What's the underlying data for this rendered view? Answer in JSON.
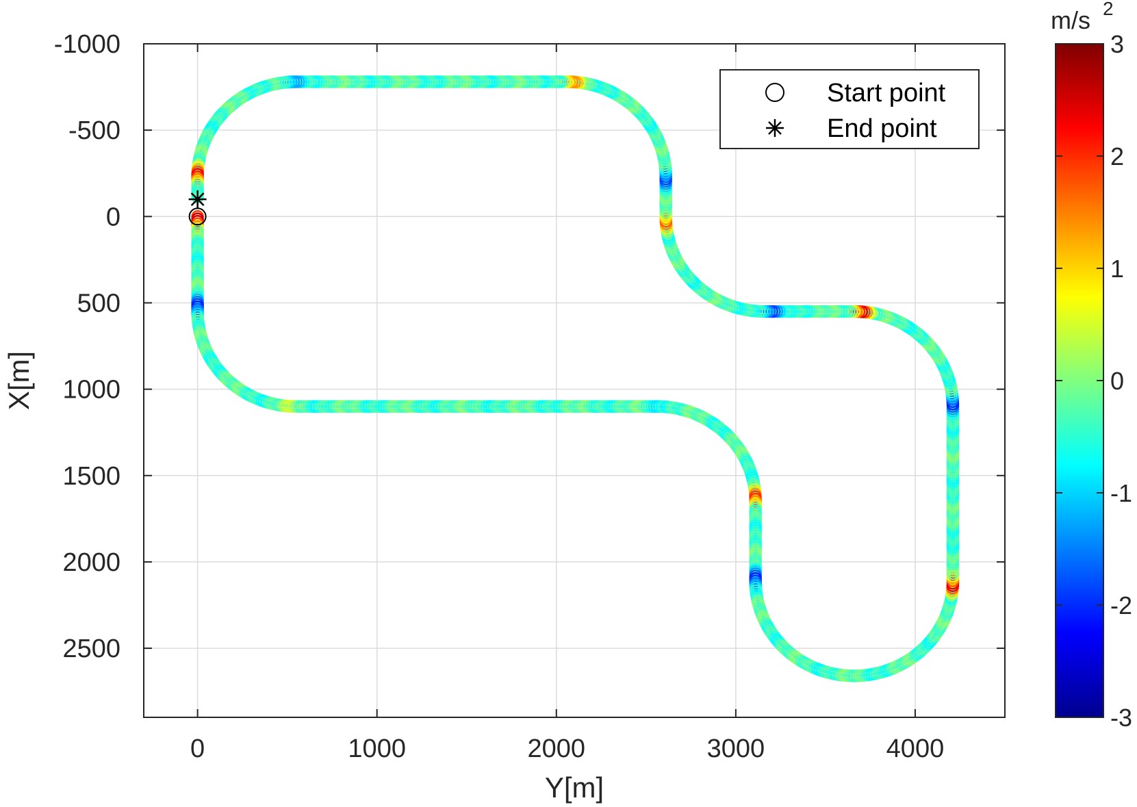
{
  "chart_data": {
    "type": "scatter",
    "xlabel": "Y[m]",
    "ylabel": "X[m]",
    "xlim": [
      -300,
      4500
    ],
    "ylim": [
      -1000,
      2900
    ],
    "y_reversed": true,
    "grid": true,
    "x_ticks": [
      0,
      1000,
      2000,
      3000,
      4000
    ],
    "x_tick_labels": [
      "0",
      "1000",
      "2000",
      "3000",
      "4000"
    ],
    "y_ticks": [
      -1000,
      -500,
      0,
      500,
      1000,
      1500,
      2000,
      2500
    ],
    "y_tick_labels": [
      "-1000",
      "-500",
      "0",
      "500",
      "1000",
      "1500",
      "2000",
      "2500"
    ],
    "colorbar": {
      "unit": "m/s",
      "unit_superscript": "2",
      "colormap": "jet",
      "range": [
        -3,
        3
      ],
      "ticks": [
        -3,
        -2,
        -1,
        0,
        1,
        2,
        3
      ],
      "tick_labels": [
        "-3",
        "-2",
        "-1",
        "0",
        "1",
        "2",
        "3"
      ]
    },
    "legend": {
      "position": "top-right",
      "entries": [
        {
          "label": "Start point",
          "marker": "circle"
        },
        {
          "label": "End point",
          "marker": "asterisk"
        }
      ]
    },
    "markers": {
      "start": {
        "x": 0,
        "y": 0
      },
      "end": {
        "x": 0,
        "y": -100
      }
    },
    "track": {
      "baseline_accel": -0.35,
      "segments": [
        {
          "type": "line",
          "from": [
            0,
            0
          ],
          "to": [
            0,
            550
          ]
        },
        {
          "type": "arc",
          "center": [
            550,
            550
          ],
          "radius": 550,
          "start_deg": 180,
          "end_deg": 90
        },
        {
          "type": "line",
          "from": [
            550,
            1100
          ],
          "to": [
            2560,
            1100
          ]
        },
        {
          "type": "arc",
          "center": [
            2560,
            1650
          ],
          "radius": 550,
          "start_deg": 270,
          "end_deg": 360
        },
        {
          "type": "line",
          "from": [
            3110,
            1650
          ],
          "to": [
            3110,
            2110
          ]
        },
        {
          "type": "arc",
          "center": [
            3660,
            2110
          ],
          "radius": 550,
          "start_deg": 180,
          "end_deg": 0,
          "ccw": true
        },
        {
          "type": "line",
          "from": [
            4210,
            2110
          ],
          "to": [
            4210,
            1100
          ]
        },
        {
          "type": "arc",
          "center": [
            3660,
            1100
          ],
          "radius": 550,
          "start_deg": 0,
          "end_deg": -90
        },
        {
          "type": "line",
          "from": [
            3660,
            550
          ],
          "to": [
            3160,
            550
          ]
        },
        {
          "type": "arc",
          "center": [
            3160,
            0
          ],
          "radius": 550,
          "start_deg": 90,
          "end_deg": 180
        },
        {
          "type": "line",
          "from": [
            2610,
            0
          ],
          "to": [
            2610,
            -230
          ]
        },
        {
          "type": "arc",
          "center": [
            2060,
            -230
          ],
          "radius": 550,
          "start_deg": 0,
          "end_deg": -90
        },
        {
          "type": "line",
          "from": [
            2060,
            -780
          ],
          "to": [
            550,
            -780
          ]
        },
        {
          "type": "arc",
          "center": [
            550,
            -230
          ],
          "radius": 550,
          "start_deg": 270,
          "end_deg": 180
        },
        {
          "type": "line",
          "from": [
            0,
            -230
          ],
          "to": [
            0,
            -100
          ]
        }
      ],
      "hotspots": [
        {
          "x": 0,
          "y": 20,
          "accel": 2.8
        },
        {
          "x": 0,
          "y": -240,
          "accel": 2.5
        },
        {
          "x": 0,
          "y": 520,
          "accel": -2.2
        },
        {
          "x": 520,
          "y": 1050,
          "accel": 2.6
        },
        {
          "x": 2560,
          "y": 1050,
          "accel": -2.2
        },
        {
          "x": 3110,
          "y": 1630,
          "accel": 2.2
        },
        {
          "x": 3110,
          "y": 2100,
          "accel": -2.2
        },
        {
          "x": 4210,
          "y": 2130,
          "accel": 2.6
        },
        {
          "x": 4210,
          "y": 1080,
          "accel": -2.2
        },
        {
          "x": 3700,
          "y": 550,
          "accel": 2.6
        },
        {
          "x": 3200,
          "y": 550,
          "accel": -2.0
        },
        {
          "x": 2610,
          "y": 30,
          "accel": 1.8
        },
        {
          "x": 2610,
          "y": -220,
          "accel": -2.0
        },
        {
          "x": 2090,
          "y": -750,
          "accel": 2.7
        },
        {
          "x": 540,
          "y": -750,
          "accel": -2.0
        }
      ]
    }
  }
}
